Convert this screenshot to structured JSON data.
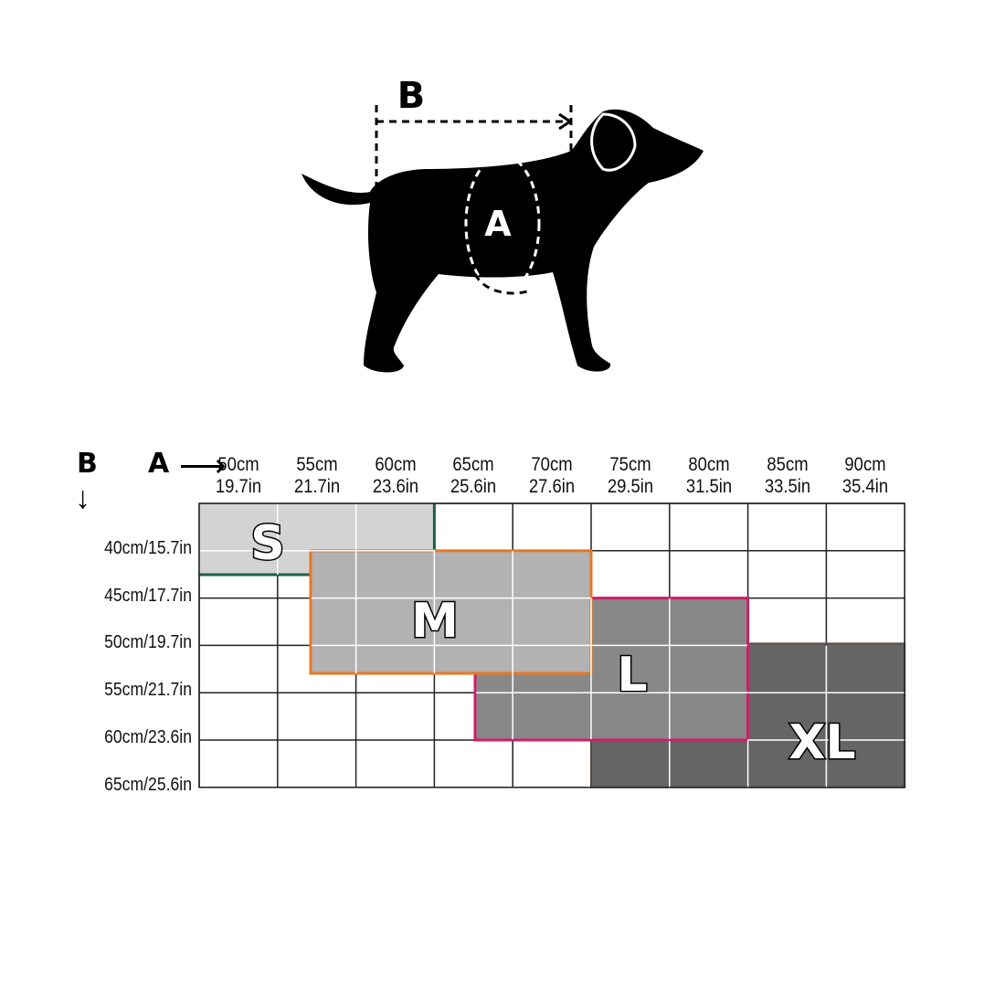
{
  "illustration": {
    "label_a": "A",
    "label_b": "B"
  },
  "axes": {
    "b_label": "B",
    "a_label": "A"
  },
  "columns": [
    {
      "cm": "50cm",
      "in": "19.7in"
    },
    {
      "cm": "55cm",
      "in": "21.7in"
    },
    {
      "cm": "60cm",
      "in": "23.6in"
    },
    {
      "cm": "65cm",
      "in": "25.6in"
    },
    {
      "cm": "70cm",
      "in": "27.6in"
    },
    {
      "cm": "75cm",
      "in": "29.5in"
    },
    {
      "cm": "80cm",
      "in": "31.5in"
    },
    {
      "cm": "85cm",
      "in": "33.5in"
    },
    {
      "cm": "90cm",
      "in": "35.4in"
    }
  ],
  "rows": [
    "40cm/15.7in",
    "45cm/17.7in",
    "50cm/19.7in",
    "55cm/21.7in",
    "60cm/23.6in",
    "65cm/25.6in"
  ],
  "sizes": [
    {
      "label": "S",
      "fill": "#d3d3d3",
      "border": "#1e5e45"
    },
    {
      "label": "M",
      "fill": "#b3b2b2",
      "border": "#e87722"
    },
    {
      "label": "L",
      "fill": "#888888",
      "border": "#cc1f6a"
    },
    {
      "label": "XL",
      "fill": "#666565",
      "border": "#5a4a48"
    }
  ]
}
